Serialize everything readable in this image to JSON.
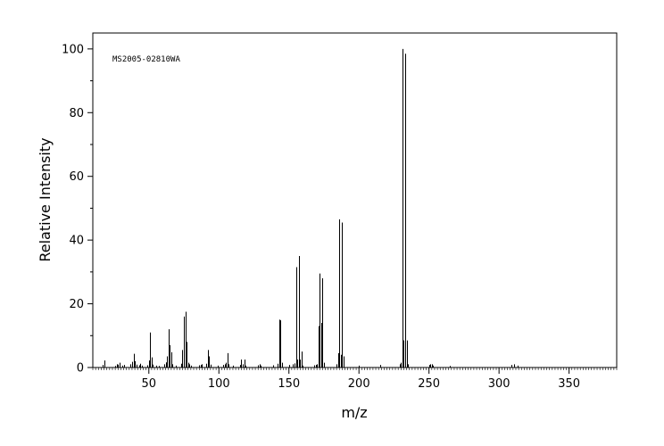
{
  "chart_data": {
    "type": "bar",
    "subtype": "mass-spectrum-stick",
    "annotation": "MS2005-02810WA",
    "xlabel": "m/z",
    "ylabel": "Relative Intensity",
    "xlim": [
      10,
      384
    ],
    "ylim": [
      0,
      105
    ],
    "x_ticks": [
      50,
      100,
      150,
      200,
      250,
      300,
      350
    ],
    "y_ticks": [
      0,
      20,
      40,
      60,
      80,
      100
    ],
    "grid": false,
    "legend": "none",
    "colors": {
      "line": "#000000",
      "background": "#ffffff"
    },
    "peaks": [
      {
        "mz": 17,
        "intensity": 0.8
      },
      {
        "mz": 18,
        "intensity": 2.2
      },
      {
        "mz": 26,
        "intensity": 0.5
      },
      {
        "mz": 27,
        "intensity": 1.0
      },
      {
        "mz": 28,
        "intensity": 0.9
      },
      {
        "mz": 29,
        "intensity": 1.5
      },
      {
        "mz": 31,
        "intensity": 0.6
      },
      {
        "mz": 32,
        "intensity": 0.8
      },
      {
        "mz": 37,
        "intensity": 1.0
      },
      {
        "mz": 38,
        "intensity": 1.8
      },
      {
        "mz": 39,
        "intensity": 4.3
      },
      {
        "mz": 40,
        "intensity": 2.0
      },
      {
        "mz": 41,
        "intensity": 0.9
      },
      {
        "mz": 43,
        "intensity": 0.7
      },
      {
        "mz": 44,
        "intensity": 1.2
      },
      {
        "mz": 45,
        "intensity": 0.6
      },
      {
        "mz": 49,
        "intensity": 0.7
      },
      {
        "mz": 50,
        "intensity": 2.2
      },
      {
        "mz": 51,
        "intensity": 11.0
      },
      {
        "mz": 52,
        "intensity": 3.2
      },
      {
        "mz": 53,
        "intensity": 0.9
      },
      {
        "mz": 55,
        "intensity": 0.6
      },
      {
        "mz": 57,
        "intensity": 0.5
      },
      {
        "mz": 61,
        "intensity": 1.0
      },
      {
        "mz": 62,
        "intensity": 1.6
      },
      {
        "mz": 63,
        "intensity": 3.5
      },
      {
        "mz": 64,
        "intensity": 12.0
      },
      {
        "mz": 65,
        "intensity": 7.0
      },
      {
        "mz": 66,
        "intensity": 4.8
      },
      {
        "mz": 67,
        "intensity": 1.0
      },
      {
        "mz": 69,
        "intensity": 0.6
      },
      {
        "mz": 73,
        "intensity": 1.2
      },
      {
        "mz": 74,
        "intensity": 5.5
      },
      {
        "mz": 75,
        "intensity": 16.0
      },
      {
        "mz": 76,
        "intensity": 17.5
      },
      {
        "mz": 77,
        "intensity": 8.0
      },
      {
        "mz": 78,
        "intensity": 1.5
      },
      {
        "mz": 79,
        "intensity": 1.0
      },
      {
        "mz": 80,
        "intensity": 0.6
      },
      {
        "mz": 86,
        "intensity": 0.7
      },
      {
        "mz": 87,
        "intensity": 0.8
      },
      {
        "mz": 88,
        "intensity": 1.0
      },
      {
        "mz": 91,
        "intensity": 1.2
      },
      {
        "mz": 92,
        "intensity": 5.5
      },
      {
        "mz": 93,
        "intensity": 3.5
      },
      {
        "mz": 94,
        "intensity": 0.9
      },
      {
        "mz": 99,
        "intensity": 0.6
      },
      {
        "mz": 103,
        "intensity": 0.8
      },
      {
        "mz": 104,
        "intensity": 1.0
      },
      {
        "mz": 105,
        "intensity": 1.5
      },
      {
        "mz": 106,
        "intensity": 4.5
      },
      {
        "mz": 107,
        "intensity": 1.0
      },
      {
        "mz": 110,
        "intensity": 0.6
      },
      {
        "mz": 115,
        "intensity": 0.8
      },
      {
        "mz": 116,
        "intensity": 2.5
      },
      {
        "mz": 117,
        "intensity": 1.0
      },
      {
        "mz": 118,
        "intensity": 2.5
      },
      {
        "mz": 119,
        "intensity": 0.6
      },
      {
        "mz": 128,
        "intensity": 0.7
      },
      {
        "mz": 129,
        "intensity": 1.0
      },
      {
        "mz": 130,
        "intensity": 0.6
      },
      {
        "mz": 139,
        "intensity": 0.7
      },
      {
        "mz": 142,
        "intensity": 1.2
      },
      {
        "mz": 143,
        "intensity": 15.0
      },
      {
        "mz": 144,
        "intensity": 14.8
      },
      {
        "mz": 145,
        "intensity": 1.5
      },
      {
        "mz": 150,
        "intensity": 0.8
      },
      {
        "mz": 153,
        "intensity": 1.0
      },
      {
        "mz": 154,
        "intensity": 1.3
      },
      {
        "mz": 155,
        "intensity": 31.5
      },
      {
        "mz": 156,
        "intensity": 2.5
      },
      {
        "mz": 157,
        "intensity": 35.0
      },
      {
        "mz": 158,
        "intensity": 2.5
      },
      {
        "mz": 159,
        "intensity": 5.0
      },
      {
        "mz": 160,
        "intensity": 0.6
      },
      {
        "mz": 168,
        "intensity": 0.7
      },
      {
        "mz": 169,
        "intensity": 0.8
      },
      {
        "mz": 170,
        "intensity": 1.0
      },
      {
        "mz": 171,
        "intensity": 13.0
      },
      {
        "mz": 172,
        "intensity": 29.5
      },
      {
        "mz": 173,
        "intensity": 14.0
      },
      {
        "mz": 174,
        "intensity": 28.0
      },
      {
        "mz": 175,
        "intensity": 1.5
      },
      {
        "mz": 184,
        "intensity": 1.0
      },
      {
        "mz": 185,
        "intensity": 4.5
      },
      {
        "mz": 186,
        "intensity": 46.5
      },
      {
        "mz": 187,
        "intensity": 4.0
      },
      {
        "mz": 188,
        "intensity": 45.5
      },
      {
        "mz": 189,
        "intensity": 3.5
      },
      {
        "mz": 200,
        "intensity": 0.6
      },
      {
        "mz": 215,
        "intensity": 0.8
      },
      {
        "mz": 229,
        "intensity": 1.0
      },
      {
        "mz": 230,
        "intensity": 1.5
      },
      {
        "mz": 231,
        "intensity": 100.0
      },
      {
        "mz": 232,
        "intensity": 8.5
      },
      {
        "mz": 233,
        "intensity": 98.5
      },
      {
        "mz": 234,
        "intensity": 8.5
      },
      {
        "mz": 235,
        "intensity": 1.0
      },
      {
        "mz": 250,
        "intensity": 0.8
      },
      {
        "mz": 251,
        "intensity": 1.0
      },
      {
        "mz": 252,
        "intensity": 1.0
      },
      {
        "mz": 253,
        "intensity": 0.6
      },
      {
        "mz": 265,
        "intensity": 0.5
      },
      {
        "mz": 309,
        "intensity": 0.8
      },
      {
        "mz": 311,
        "intensity": 1.0
      },
      {
        "mz": 313,
        "intensity": 0.6
      }
    ]
  }
}
